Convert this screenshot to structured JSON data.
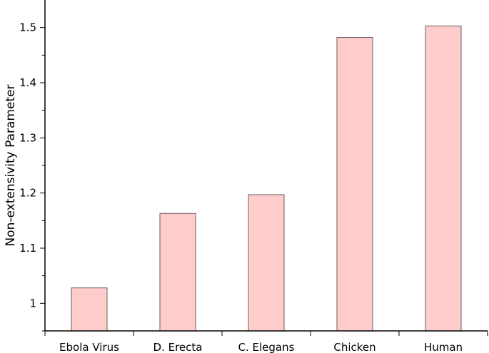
{
  "chart_data": {
    "type": "bar",
    "title": "",
    "xlabel": "",
    "ylabel": "Non-extensivity Parameter",
    "categories": [
      "Ebola Virus",
      "D. Erecta",
      "C. Elegans",
      "Chicken",
      "Human"
    ],
    "values": [
      1.028,
      1.163,
      1.197,
      1.482,
      1.503
    ],
    "ylim": [
      0.95,
      1.55
    ],
    "yticks": [
      1,
      1.1,
      1.2,
      1.3,
      1.4,
      1.5
    ],
    "ytick_labels": [
      "1",
      "1.1",
      "1.2",
      "1.3",
      "1.4",
      "1.5"
    ],
    "grid": false,
    "bar_color": "#ffcccc",
    "bar_edge_color": "#6b5b5b"
  }
}
